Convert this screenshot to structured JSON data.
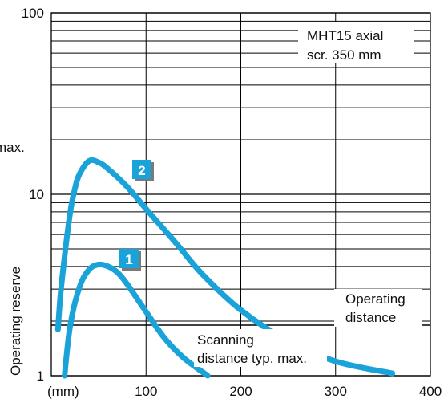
{
  "chart_data": {
    "type": "line",
    "title": "",
    "xlabel": "(mm)",
    "ylabel": "Operating reserve",
    "x_scale": "linear",
    "y_scale": "log",
    "xlim": [
      0,
      400
    ],
    "ylim": [
      1,
      100
    ],
    "x_ticks": [
      100,
      200,
      300,
      400
    ],
    "x_tick_labels": [
      "100",
      "200",
      "300",
      "400"
    ],
    "y_ticks": [
      1,
      10,
      100
    ],
    "y_tick_labels": [
      "1",
      "10",
      "100"
    ],
    "grid": true,
    "series": [
      {
        "name": "1",
        "color": "#1aa3d9",
        "x": [
          14,
          20,
          30,
          40,
          50,
          60,
          70,
          80,
          100,
          120,
          140,
          165
        ],
        "y": [
          1.0,
          1.9,
          3.1,
          3.85,
          4.1,
          4.0,
          3.7,
          3.2,
          2.25,
          1.6,
          1.25,
          1.0
        ]
      },
      {
        "name": "2",
        "color": "#1aa3d9",
        "x": [
          7,
          10,
          15,
          20,
          25,
          30,
          40,
          50,
          60,
          80,
          100,
          130,
          160,
          200,
          250,
          300,
          360
        ],
        "y": [
          1.8,
          2.9,
          5.0,
          8.0,
          10.8,
          13.0,
          15.3,
          15.0,
          13.8,
          11.0,
          8.3,
          5.5,
          3.6,
          2.3,
          1.55,
          1.2,
          1.03
        ]
      }
    ],
    "series_badges": [
      "1",
      "2"
    ],
    "annotations": {
      "sensor_line1": "MHT15 axial",
      "sensor_line2": "scr. 350 mm",
      "operating_line1": "Operating",
      "operating_line2": "distance",
      "scanning_line1": "Scanning",
      "scanning_line2": "distance typ. max.",
      "partial_max": "max."
    },
    "reference_line_y": 1.9
  }
}
